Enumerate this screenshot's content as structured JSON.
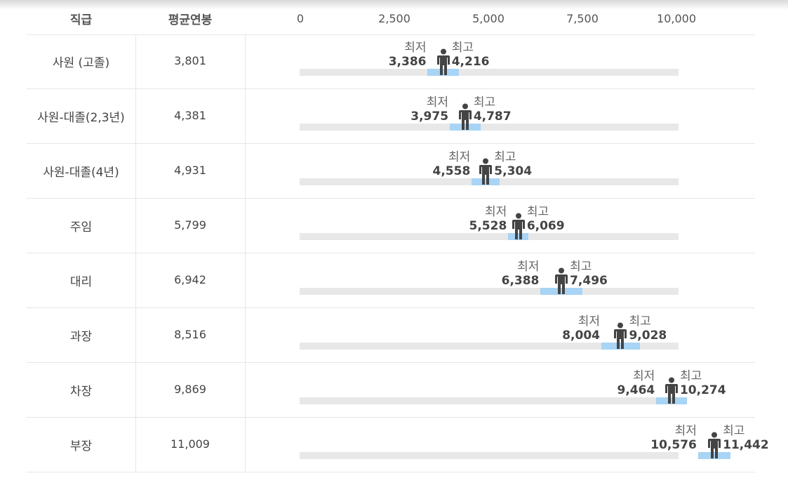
{
  "header": {
    "rank_label": "직급",
    "avg_label": "평균연봉",
    "ticks": [
      "0",
      "2,500",
      "5,000",
      "7,500",
      "10,000"
    ]
  },
  "labels": {
    "min_word": "최저",
    "max_word": "최고"
  },
  "colors": {
    "track": "#e8e8e8",
    "range": "#a8d4f5",
    "person": "#444444",
    "grid": "#e6e6e6"
  },
  "icons": {
    "marker": "person-icon"
  },
  "rows": [
    {
      "rank": "사원 (고졸)",
      "avg": "3,801",
      "min": "3,386",
      "max": "4,216"
    },
    {
      "rank": "사원-대졸(2,3년)",
      "avg": "4,381",
      "min": "3,975",
      "max": "4,787"
    },
    {
      "rank": "사원-대졸(4년)",
      "avg": "4,931",
      "min": "4,558",
      "max": "5,304"
    },
    {
      "rank": "주임",
      "avg": "5,799",
      "min": "5,528",
      "max": "6,069"
    },
    {
      "rank": "대리",
      "avg": "6,942",
      "min": "6,388",
      "max": "7,496"
    },
    {
      "rank": "과장",
      "avg": "8,516",
      "min": "8,004",
      "max": "9,028"
    },
    {
      "rank": "차장",
      "avg": "9,869",
      "min": "9,464",
      "max": "10,274"
    },
    {
      "rank": "부장",
      "avg": "11,009",
      "min": "10,576",
      "max": "11,442"
    }
  ],
  "chart_data": {
    "type": "range",
    "categories": [
      "사원 (고졸)",
      "사원-대졸(2,3년)",
      "사원-대졸(4년)",
      "주임",
      "대리",
      "과장",
      "차장",
      "부장"
    ],
    "series": [
      {
        "name": "평균연봉",
        "values": [
          3801,
          4381,
          4931,
          5799,
          6942,
          8516,
          9869,
          11009
        ]
      },
      {
        "name": "최저",
        "values": [
          3386,
          3975,
          4558,
          5528,
          6388,
          8004,
          9464,
          10576
        ]
      },
      {
        "name": "최고",
        "values": [
          4216,
          4787,
          5304,
          6069,
          7496,
          9028,
          10274,
          11442
        ]
      }
    ],
    "xlim": [
      0,
      10000
    ],
    "xticks": [
      0,
      2500,
      5000,
      7500,
      10000
    ],
    "grid": false
  }
}
